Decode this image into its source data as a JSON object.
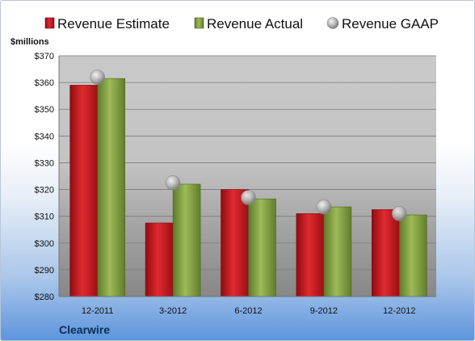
{
  "company": "Clearwire",
  "chart_data": {
    "type": "bar",
    "ylabel": "$millions",
    "ylim": [
      280,
      370
    ],
    "yticks": [
      280,
      290,
      300,
      310,
      320,
      330,
      340,
      350,
      360,
      370
    ],
    "ytick_labels": [
      "$280",
      "$290",
      "$300",
      "$310",
      "$320",
      "$330",
      "$340",
      "$350",
      "$360",
      "$370"
    ],
    "categories": [
      "12-2011",
      "3-2012",
      "6-2012",
      "9-2012",
      "12-2012"
    ],
    "series": [
      {
        "name": "Revenue Estimate",
        "kind": "bar",
        "values": [
          359,
          307.5,
          320,
          311,
          312.5
        ],
        "color": "#c8171d"
      },
      {
        "name": "Revenue Actual",
        "kind": "bar",
        "values": [
          361.5,
          322,
          316.5,
          313.5,
          310.5
        ],
        "color": "#7f9d3c"
      },
      {
        "name": "Revenue GAAP",
        "kind": "marker",
        "values": [
          362,
          322.5,
          317,
          313.5,
          311
        ],
        "color": "#a8a8a8"
      }
    ],
    "grid": true,
    "legend_position": "top"
  }
}
